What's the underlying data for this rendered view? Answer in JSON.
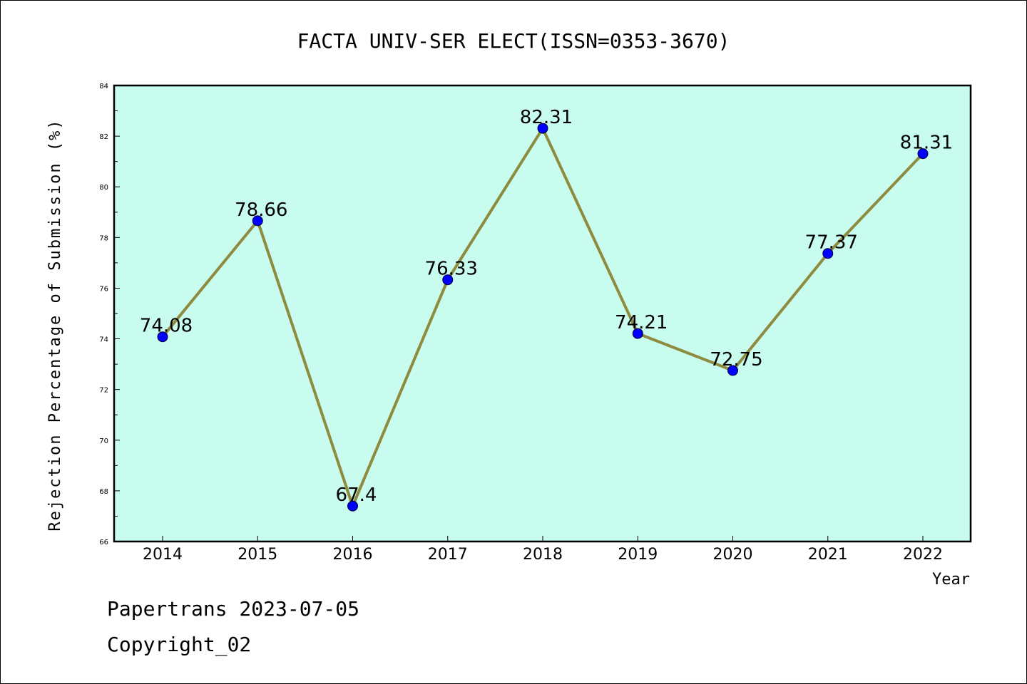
{
  "chart_data": {
    "type": "line",
    "title": "FACTA UNIV-SER ELECT(ISSN=0353-3670)",
    "xlabel": "Year",
    "ylabel": "Rejection Percentage of Submission (%)",
    "x": [
      "2014",
      "2015",
      "2016",
      "2017",
      "2018",
      "2019",
      "2020",
      "2021",
      "2022"
    ],
    "values": [
      74.08,
      78.66,
      67.4,
      76.33,
      82.31,
      74.21,
      72.75,
      77.37,
      81.31
    ],
    "data_labels": [
      "74.08",
      "78.66",
      "67.4",
      "76.33",
      "82.31",
      "74.21",
      "72.75",
      "77.37",
      "81.31"
    ],
    "ylim": [
      66,
      84
    ],
    "yticks": [
      "66",
      "68",
      "70",
      "72",
      "74",
      "76",
      "78",
      "80",
      "82",
      "84"
    ],
    "grid": false,
    "colors": {
      "plot_background": "#c8fcee",
      "line": "#8e8a3e",
      "marker": "#0000ff"
    }
  },
  "footer": {
    "line1": "Papertrans 2023-07-05",
    "line2": "Copyright_02"
  }
}
